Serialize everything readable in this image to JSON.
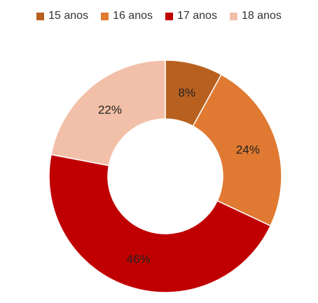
{
  "chart_data": {
    "type": "pie",
    "donut": true,
    "legend_position": "top",
    "categories": [
      "15 anos",
      "16 anos",
      "17 anos",
      "18 anos"
    ],
    "values": [
      8,
      24,
      46,
      22
    ],
    "labels": [
      "8%",
      "24%",
      "46%",
      "22%"
    ],
    "colors": [
      "#b8601f",
      "#e07a32",
      "#c00000",
      "#f2c0a8"
    ]
  }
}
